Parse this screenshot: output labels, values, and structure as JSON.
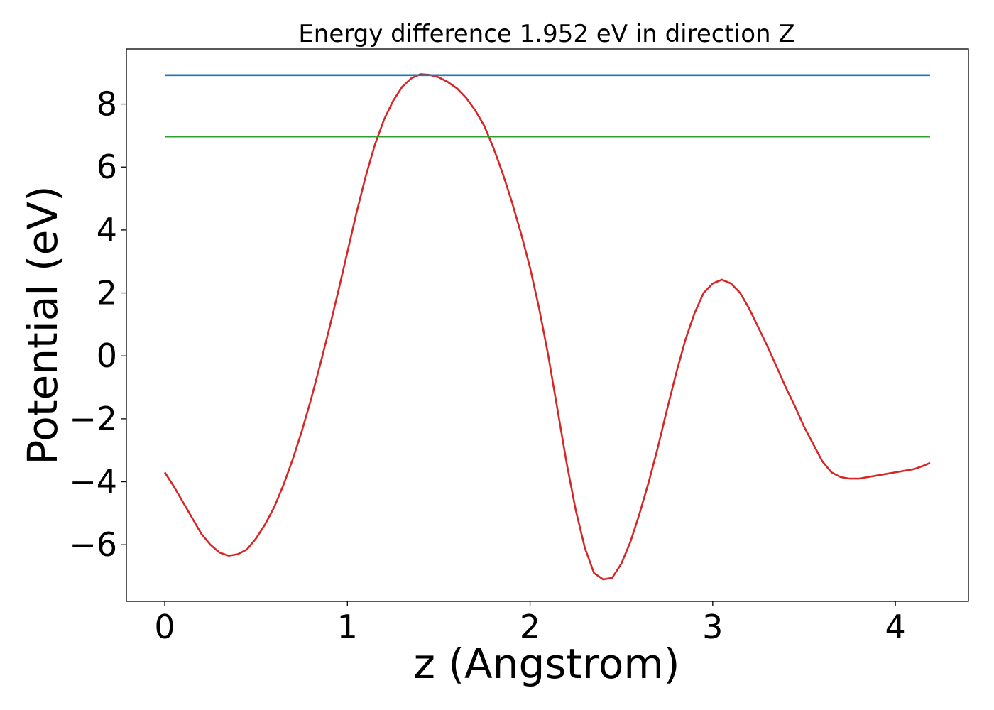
{
  "chart_data": {
    "type": "line",
    "title": "Energy difference 1.952 eV in direction Z",
    "xlabel": "z (Angstrom)",
    "ylabel": "Potential (eV)",
    "xlim": [
      -0.21,
      4.4
    ],
    "ylim": [
      -7.8,
      9.75
    ],
    "xticks": [
      0,
      1,
      2,
      3,
      4
    ],
    "yticks": [
      -6,
      -4,
      -2,
      0,
      2,
      4,
      6,
      8
    ],
    "xtick_labels": [
      "0",
      "1",
      "2",
      "3",
      "4"
    ],
    "ytick_labels": [
      "−6",
      "−4",
      "−2",
      "0",
      "2",
      "4",
      "6",
      "8"
    ],
    "grid": false,
    "legend": "none",
    "series": [
      {
        "color": "#d62728",
        "x": [
          0.0,
          0.05,
          0.1,
          0.15,
          0.2,
          0.25,
          0.3,
          0.35,
          0.4,
          0.45,
          0.5,
          0.55,
          0.6,
          0.65,
          0.7,
          0.75,
          0.8,
          0.85,
          0.9,
          0.95,
          1.0,
          1.05,
          1.1,
          1.15,
          1.2,
          1.25,
          1.3,
          1.35,
          1.4,
          1.45,
          1.5,
          1.55,
          1.6,
          1.65,
          1.7,
          1.75,
          1.8,
          1.85,
          1.9,
          1.95,
          2.0,
          2.05,
          2.1,
          2.15,
          2.2,
          2.25,
          2.3,
          2.35,
          2.4,
          2.45,
          2.5,
          2.55,
          2.6,
          2.65,
          2.7,
          2.75,
          2.8,
          2.85,
          2.9,
          2.95,
          3.0,
          3.05,
          3.1,
          3.15,
          3.2,
          3.25,
          3.3,
          3.35,
          3.4,
          3.45,
          3.5,
          3.55,
          3.6,
          3.65,
          3.7,
          3.75,
          3.8,
          3.85,
          3.9,
          3.95,
          4.0,
          4.05,
          4.1,
          4.15,
          4.19
        ],
        "y": [
          -3.7,
          -4.15,
          -4.65,
          -5.15,
          -5.65,
          -6.0,
          -6.25,
          -6.35,
          -6.3,
          -6.15,
          -5.8,
          -5.35,
          -4.8,
          -4.1,
          -3.3,
          -2.4,
          -1.4,
          -0.3,
          0.85,
          2.05,
          3.3,
          4.55,
          5.7,
          6.7,
          7.5,
          8.1,
          8.55,
          8.82,
          8.95,
          8.93,
          8.85,
          8.7,
          8.5,
          8.2,
          7.8,
          7.3,
          6.6,
          5.8,
          4.9,
          3.9,
          2.8,
          1.5,
          0.0,
          -1.7,
          -3.4,
          -4.9,
          -6.1,
          -6.9,
          -7.1,
          -7.05,
          -6.6,
          -5.9,
          -5.0,
          -4.0,
          -2.9,
          -1.7,
          -0.55,
          0.5,
          1.35,
          2.0,
          2.3,
          2.42,
          2.3,
          2.0,
          1.5,
          0.9,
          0.3,
          -0.35,
          -1.0,
          -1.6,
          -2.25,
          -2.8,
          -3.35,
          -3.7,
          -3.85,
          -3.9,
          -3.9,
          -3.85,
          -3.8,
          -3.75,
          -3.7,
          -3.65,
          -3.6,
          -3.5,
          -3.4
        ]
      },
      {
        "color": "#1f77b4",
        "x": [
          0.0,
          4.19
        ],
        "y": [
          8.92,
          8.92
        ]
      },
      {
        "color": "#2ca02c",
        "x": [
          0.0,
          4.19
        ],
        "y": [
          6.97,
          6.97
        ]
      }
    ]
  }
}
